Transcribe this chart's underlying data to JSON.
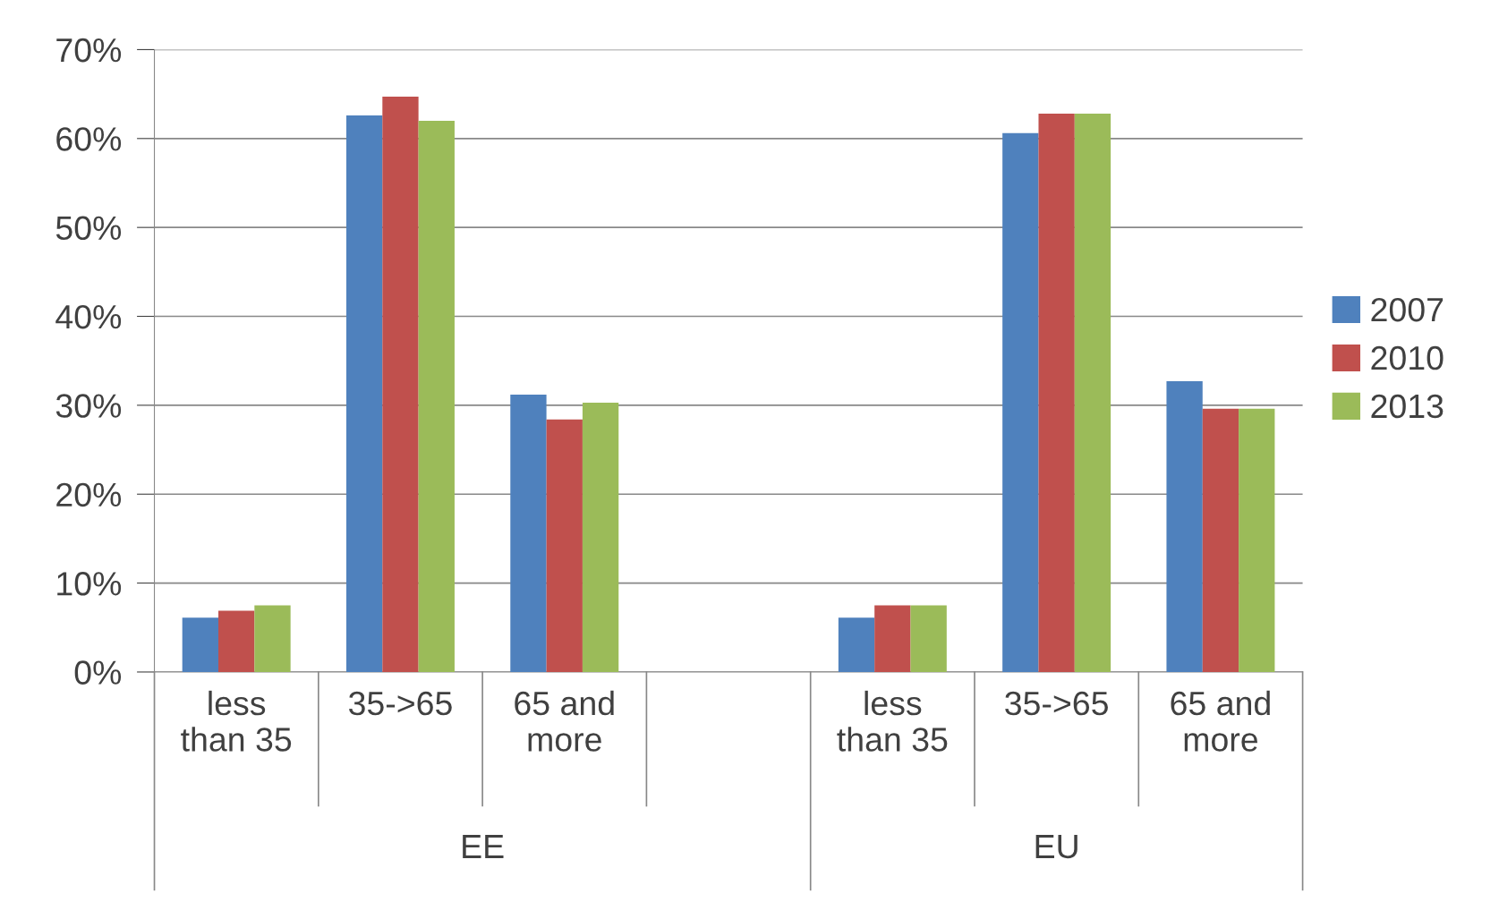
{
  "chart_data": {
    "type": "bar",
    "categories": [
      "less than 35",
      "35->65",
      "65 and more",
      null,
      "less than 35",
      "35->65",
      "65 and more"
    ],
    "series": [
      {
        "name": "2007",
        "color": "#4f81bd",
        "values": [
          6.1,
          62.6,
          31.2,
          null,
          6.1,
          60.6,
          32.7
        ]
      },
      {
        "name": "2010",
        "color": "#c0504d",
        "values": [
          6.9,
          64.7,
          28.4,
          null,
          7.5,
          62.8,
          29.6
        ]
      },
      {
        "name": "2013",
        "color": "#9bbb59",
        "values": [
          7.5,
          62.0,
          30.3,
          null,
          7.5,
          62.8,
          29.6
        ]
      }
    ],
    "annotations": [
      "EE",
      "EU"
    ],
    "ylim": [
      0,
      70
    ],
    "yticks": [
      {
        "value": 0,
        "label": "0%"
      },
      {
        "value": 10,
        "label": "10%"
      },
      {
        "value": 20,
        "label": "20%"
      },
      {
        "value": 30,
        "label": "30%"
      },
      {
        "value": 40,
        "label": "40%"
      },
      {
        "value": 50,
        "label": "50%"
      },
      {
        "value": 60,
        "label": "60%"
      },
      {
        "value": 70,
        "label": "70%"
      }
    ],
    "grid": "y",
    "legend": "right"
  }
}
